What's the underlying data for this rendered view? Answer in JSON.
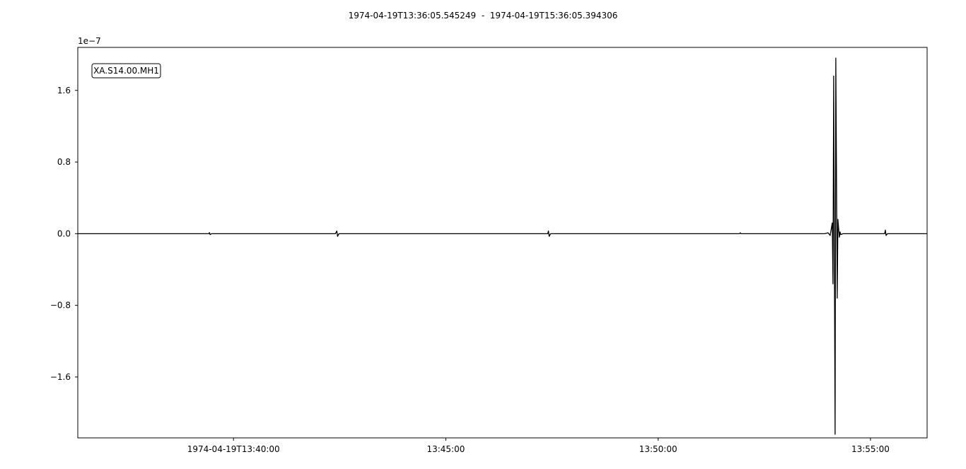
{
  "title": "1974-04-19T13:36:05.545249  -  1974-04-19T15:36:05.394306",
  "chart_data": {
    "type": "line",
    "station_label": "XA.S14.00.MH1",
    "y_scale_label": "1e−7",
    "xlim": [
      "1974-04-19T13:36:20",
      "1974-04-19T13:56:20"
    ],
    "ylim": [
      -2.28e-07,
      2.08e-07
    ],
    "x_ticks": [
      {
        "value": "1974-04-19T13:40:00",
        "label": "1974-04-19T13:40:00"
      },
      {
        "value": "1974-04-19T13:45:00",
        "label": "13:45:00"
      },
      {
        "value": "1974-04-19T13:50:00",
        "label": "13:50:00"
      },
      {
        "value": "1974-04-19T13:55:00",
        "label": "13:55:00"
      }
    ],
    "y_ticks": [
      {
        "value": 1.6e-07,
        "label": "1.6"
      },
      {
        "value": 8e-08,
        "label": "0.8"
      },
      {
        "value": 0.0,
        "label": "0.0"
      },
      {
        "value": -8e-08,
        "label": "−0.8"
      },
      {
        "value": -1.6e-07,
        "label": "−1.6"
      }
    ],
    "series": [
      {
        "color": "#000000",
        "points": [
          [
            "1974-04-19T13:36:20",
            0.0
          ],
          [
            "1974-04-19T13:39:25",
            0.0
          ],
          [
            "1974-04-19T13:39:26",
            1.2e-09
          ],
          [
            "1974-04-19T13:39:27",
            -1e-09
          ],
          [
            "1974-04-19T13:39:29",
            0.0
          ],
          [
            "1974-04-19T13:42:24",
            0.0
          ],
          [
            "1974-04-19T13:42:26",
            3e-09
          ],
          [
            "1974-04-19T13:42:27",
            -3e-09
          ],
          [
            "1974-04-19T13:42:29",
            0.0
          ],
          [
            "1974-04-19T13:47:24",
            0.0
          ],
          [
            "1974-04-19T13:47:25",
            3e-09
          ],
          [
            "1974-04-19T13:47:26",
            -3e-09
          ],
          [
            "1974-04-19T13:47:28",
            0.0
          ],
          [
            "1974-04-19T13:51:55",
            0.0
          ],
          [
            "1974-04-19T13:51:56",
            1e-09
          ],
          [
            "1974-04-19T13:51:57",
            0.0
          ],
          [
            "1974-04-19T13:53:55",
            0.0
          ],
          [
            "1974-04-19T13:54:00",
            1e-09
          ],
          [
            "1974-04-19T13:54:03",
            -2e-09
          ],
          [
            "1974-04-19T13:54:06",
            1.2e-08
          ],
          [
            "1974-04-19T13:54:07",
            -5.6e-08
          ],
          [
            "1974-04-19T13:54:08",
            1.76e-07
          ],
          [
            "1974-04-19T13:54:10",
            -2.24e-07
          ],
          [
            "1974-04-19T13:54:11",
            1.96e-07
          ],
          [
            "1974-04-19T13:54:13",
            -7.2e-08
          ],
          [
            "1974-04-19T13:54:14",
            1.6e-08
          ],
          [
            "1974-04-19T13:54:16",
            -4e-09
          ],
          [
            "1974-04-19T13:54:17",
            2e-09
          ],
          [
            "1974-04-19T13:54:18",
            -1e-09
          ],
          [
            "1974-04-19T13:54:21",
            0.0
          ],
          [
            "1974-04-19T13:55:20",
            0.0
          ],
          [
            "1974-04-19T13:55:21",
            4e-09
          ],
          [
            "1974-04-19T13:55:22",
            -2e-09
          ],
          [
            "1974-04-19T13:55:24",
            0.0
          ],
          [
            "1974-04-19T13:56:20",
            0.0
          ]
        ]
      }
    ]
  }
}
